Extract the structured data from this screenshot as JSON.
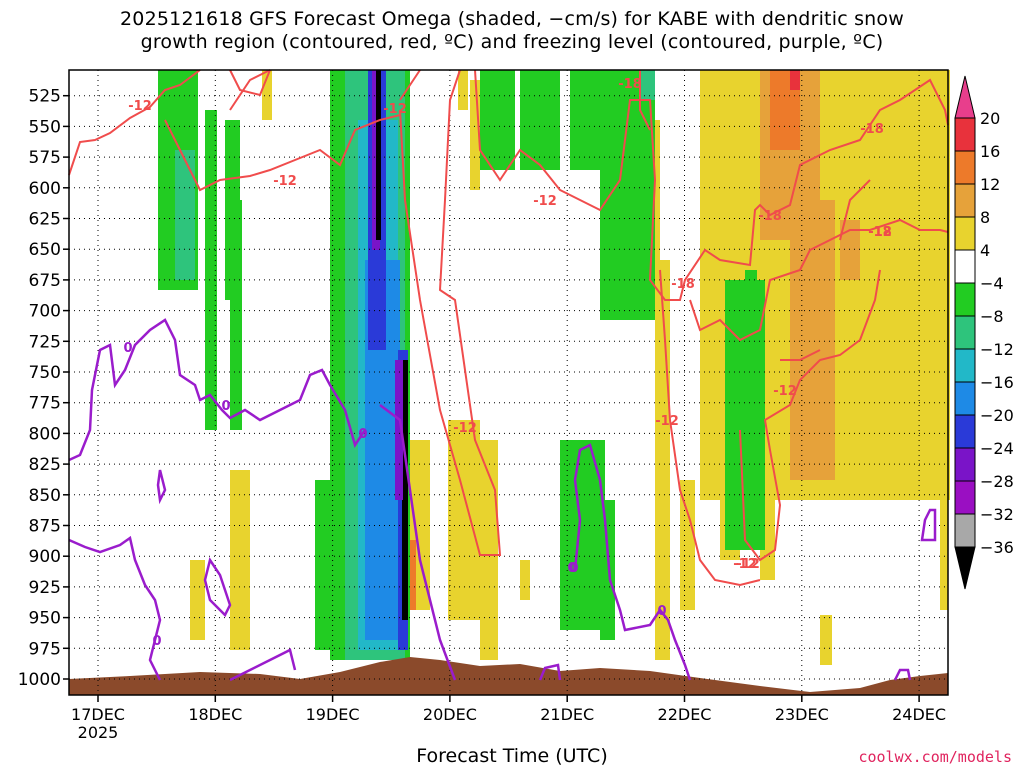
{
  "title_line1": "2025121618 GFS Forecast Omega (shaded, −cm/s) for KABE with dendritic snow",
  "title_line2": "growth region (contoured, red, ºC) and freezing level (contoured, purple, ºC)",
  "credit": "coolwx.com/models",
  "chart_data": {
    "type": "heatmap",
    "title": "2025121618 GFS Forecast Omega (shaded, −cm/s) for KABE with dendritic snow growth region (contoured, red, ºC) and freezing level (contoured, purple, ºC)",
    "xlabel": "Forecast Time (UTC)",
    "ylabel": "",
    "x_ticks": [
      "17DEC",
      "18DEC",
      "19DEC",
      "20DEC",
      "21DEC",
      "22DEC",
      "23DEC",
      "24DEC"
    ],
    "x_sublabel": "2025",
    "y_ticks": [
      525,
      550,
      575,
      600,
      625,
      650,
      675,
      700,
      725,
      750,
      775,
      800,
      825,
      850,
      875,
      900,
      925,
      950,
      975,
      1000
    ],
    "ylim": [
      1000,
      510
    ],
    "grid": true,
    "colorbar": {
      "labels": [
        "20",
        "16",
        "12",
        "8",
        "4",
        "−4",
        "−8",
        "−12",
        "−16",
        "−20",
        "−24",
        "−28",
        "−32",
        "−36"
      ],
      "colors": [
        "#e83e8c",
        "#e8323c",
        "#ed7a2a",
        "#e6a23a",
        "#e8d32e",
        "#ffffff",
        "#22cc22",
        "#2ec47c",
        "#22b8c8",
        "#1e8ae6",
        "#2a3ad8",
        "#7a14c8",
        "#9a0fc2",
        "#a8a8a8",
        "#000000"
      ]
    },
    "red_contour_labels": [
      "-12",
      "-12",
      "-12",
      "-12",
      "-12",
      "-12",
      "-12",
      "-12",
      "-12",
      "-18",
      "-18",
      "-18",
      "-18",
      "-12",
      "-18"
    ],
    "purple_contour_labels": [
      "0",
      "0",
      "0",
      "0",
      "0",
      "0",
      "0"
    ],
    "terrain_color": "#8b4a2b"
  }
}
